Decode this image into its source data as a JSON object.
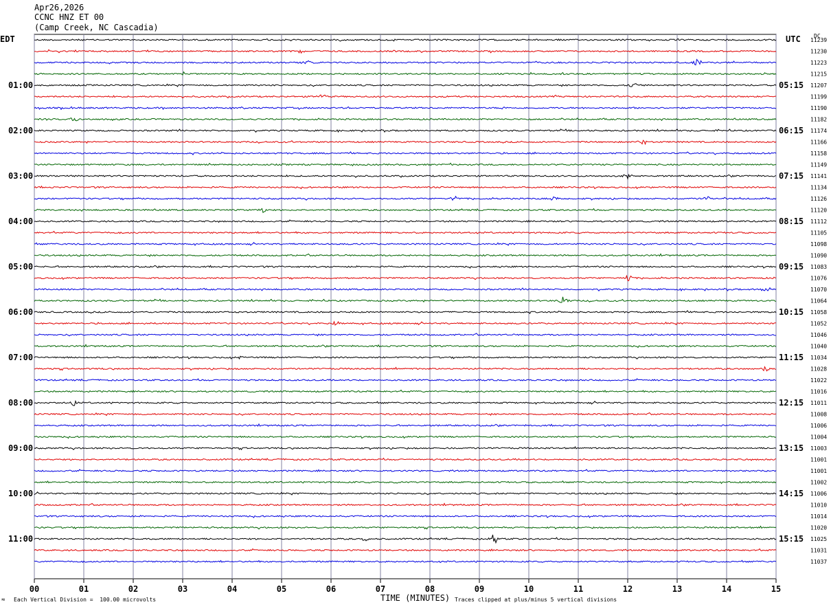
{
  "header": {
    "date": "Apr26,2026",
    "station": "CCNC HNZ ET 00",
    "location": "(Camp Creek, NC Cascadia)"
  },
  "left_corner_label": "EDT",
  "right_corner_label": "UTC",
  "dc_corner_label": "DC",
  "footer": {
    "scale_note": "Each Vertical Division =  100.00 microvolts",
    "clip_note": "Traces clipped at plus/minus 5 vertical divisions",
    "mark": "≈"
  },
  "colors": {
    "row0": "#000000",
    "row1": "#e00000",
    "row2": "#0000e0",
    "row3": "#006400",
    "grid": "#8080a0"
  },
  "chart_data": {
    "type": "line",
    "title": "CCNC HNZ ET 00",
    "xlabel": "TIME (MINUTES)",
    "xlim": [
      0,
      15
    ],
    "x_ticks": [
      "00",
      "01",
      "02",
      "03",
      "04",
      "05",
      "06",
      "07",
      "08",
      "09",
      "10",
      "11",
      "12",
      "13",
      "14",
      "15"
    ],
    "rows_per_hour": 4,
    "row_minutes": 15,
    "edt_hour_labels": [
      "01:00",
      "02:00",
      "03:00",
      "04:00",
      "05:00",
      "06:00",
      "07:00",
      "08:00",
      "09:00",
      "10:00",
      "11:00"
    ],
    "utc_hour_labels": [
      "05:15",
      "06:15",
      "07:15",
      "08:15",
      "09:15",
      "10:15",
      "11:15",
      "12:15",
      "13:15",
      "14:15",
      "15:15"
    ],
    "dc_offsets": [
      11239,
      11230,
      11223,
      11215,
      11207,
      11199,
      11190,
      11182,
      11174,
      11166,
      11158,
      11149,
      11141,
      11134,
      11126,
      11120,
      11112,
      11105,
      11098,
      11090,
      11083,
      11076,
      11070,
      11064,
      11058,
      11052,
      11046,
      11040,
      11034,
      11028,
      11022,
      11016,
      11011,
      11008,
      11006,
      11004,
      11003,
      11001,
      11001,
      11002,
      11006,
      11010,
      11014,
      11020,
      11025,
      11031,
      11037
    ],
    "events": [
      {
        "row": 1,
        "minute": 5.4,
        "amp": 3
      },
      {
        "row": 2,
        "minute": 5.5,
        "amp": 3
      },
      {
        "row": 2,
        "minute": 13.4,
        "amp": 6
      },
      {
        "row": 3,
        "minute": 3.0,
        "amp": 4
      },
      {
        "row": 4,
        "minute": 12.1,
        "amp": 5
      },
      {
        "row": 5,
        "minute": 5.8,
        "amp": 4
      },
      {
        "row": 7,
        "minute": 0.8,
        "amp": 4
      },
      {
        "row": 9,
        "minute": 12.3,
        "amp": 5
      },
      {
        "row": 12,
        "minute": 12.0,
        "amp": 4
      },
      {
        "row": 14,
        "minute": 8.5,
        "amp": 4
      },
      {
        "row": 14,
        "minute": 10.5,
        "amp": 4
      },
      {
        "row": 14,
        "minute": 13.6,
        "amp": 4
      },
      {
        "row": 15,
        "minute": 4.6,
        "amp": 5
      },
      {
        "row": 21,
        "minute": 12.0,
        "amp": 6
      },
      {
        "row": 22,
        "minute": 14.8,
        "amp": 5
      },
      {
        "row": 23,
        "minute": 10.7,
        "amp": 8
      },
      {
        "row": 25,
        "minute": 6.1,
        "amp": 3
      },
      {
        "row": 28,
        "minute": 4.2,
        "amp": 3
      },
      {
        "row": 29,
        "minute": 14.8,
        "amp": 4
      },
      {
        "row": 32,
        "minute": 0.8,
        "amp": 5
      },
      {
        "row": 39,
        "minute": 7.3,
        "amp": 3
      },
      {
        "row": 44,
        "minute": 6.7,
        "amp": 4
      },
      {
        "row": 44,
        "minute": 9.3,
        "amp": 8
      }
    ]
  }
}
